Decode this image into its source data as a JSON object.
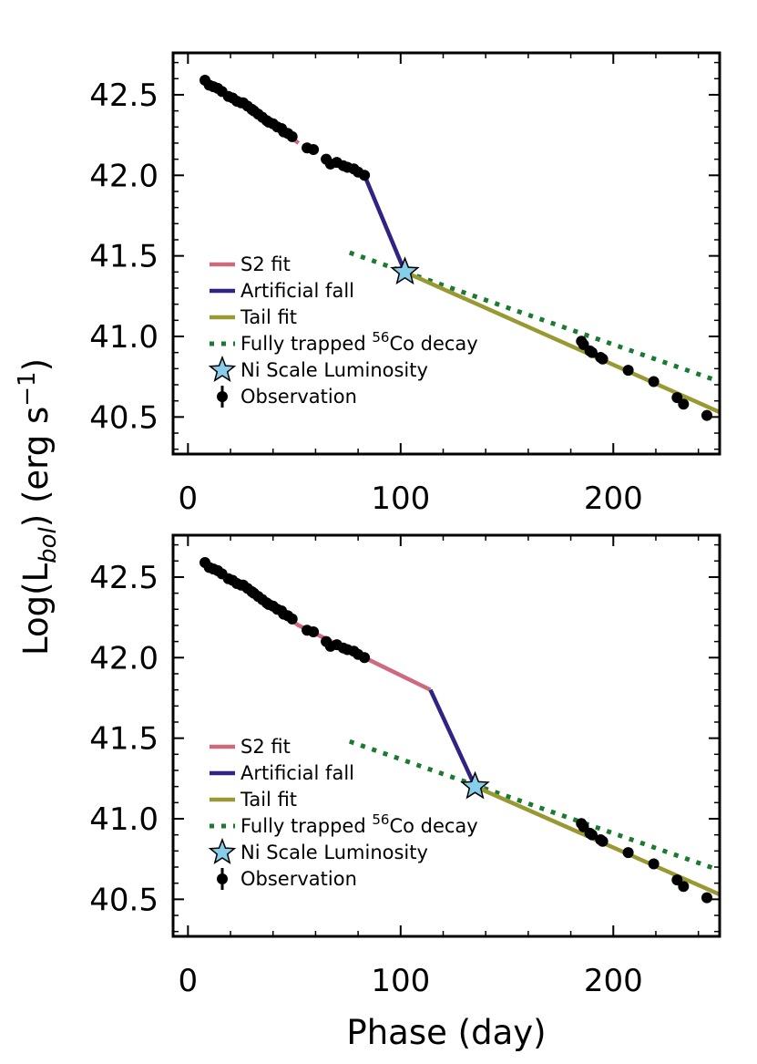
{
  "figure": {
    "ylabel_main": "Log(L",
    "ylabel_sub": "bol",
    "ylabel_tail": ") (erg s",
    "ylabel_exp": "−1",
    "ylabel_close": ")",
    "xlabel": "Phase (day)"
  },
  "colors": {
    "s2_fit": "#cd6a7e",
    "artificial_fall": "#2f2384",
    "tail_fit": "#999933",
    "co_decay": "#1a7a32",
    "star_fill": "#87ceeb",
    "observation": "#000000"
  },
  "chart_data": [
    {
      "type": "line",
      "panel": "top",
      "xlim": [
        -7,
        250
      ],
      "ylim": [
        40.27,
        42.76
      ],
      "xticks": [
        "0",
        "100",
        "200"
      ],
      "xtick_values": [
        0,
        100,
        200
      ],
      "yticks": [
        "40.5",
        "41.0",
        "41.5",
        "42.0",
        "42.5"
      ],
      "ytick_values": [
        40.5,
        41.0,
        41.5,
        42.0,
        42.5
      ],
      "series": {
        "s2_fit": {
          "x": [
            8,
            49,
            52
          ],
          "y": [
            42.59,
            42.23,
            42.2
          ]
        },
        "artificial_fall": {
          "x": [
            83,
            102
          ],
          "y": [
            42.0,
            41.4
          ]
        },
        "tail_fit": {
          "x": [
            102,
            250
          ],
          "y": [
            41.4,
            40.53
          ]
        },
        "co_decay": {
          "x": [
            76,
            250
          ],
          "y": [
            41.52,
            40.72
          ]
        },
        "ni_scale_luminosity": {
          "x": 102,
          "y": 41.4
        }
      },
      "observations": {
        "x": [
          8,
          10,
          12,
          14,
          16,
          19,
          21,
          23,
          25,
          26,
          28,
          30,
          31,
          33,
          35,
          37,
          38,
          40,
          42,
          44,
          45,
          47,
          49,
          56,
          59,
          65,
          67,
          70,
          73,
          75,
          78,
          80,
          83,
          185,
          186,
          189,
          190,
          194,
          195,
          207,
          219,
          230,
          233,
          244
        ],
        "y": [
          42.59,
          42.56,
          42.55,
          42.54,
          42.52,
          42.49,
          42.48,
          42.46,
          42.45,
          42.45,
          42.43,
          42.41,
          42.4,
          42.38,
          42.36,
          42.34,
          42.33,
          42.32,
          42.3,
          42.29,
          42.27,
          42.26,
          42.24,
          42.17,
          42.16,
          42.1,
          42.07,
          42.08,
          42.06,
          42.05,
          42.04,
          42.02,
          42.0,
          40.97,
          40.95,
          40.91,
          40.9,
          40.87,
          40.86,
          40.79,
          40.72,
          40.62,
          40.58,
          40.51
        ]
      },
      "legend": {
        "position": "lower-left",
        "entries": [
          "S2 fit",
          "Artificial fall",
          "Tail fit",
          "Fully trapped ",
          "56",
          "Co decay",
          "Ni Scale Luminosity",
          "Observation"
        ]
      }
    },
    {
      "type": "line",
      "panel": "bottom",
      "xlim": [
        -7,
        250
      ],
      "ylim": [
        40.27,
        42.76
      ],
      "xticks": [
        "0",
        "100",
        "200"
      ],
      "xtick_values": [
        0,
        100,
        200
      ],
      "yticks": [
        "40.5",
        "41.0",
        "41.5",
        "42.0",
        "42.5"
      ],
      "ytick_values": [
        40.5,
        41.0,
        41.5,
        42.0,
        42.5
      ],
      "series": {
        "s2_fit": {
          "x": [
            8,
            49,
            52,
            83,
            114
          ],
          "y": [
            42.59,
            42.23,
            42.2,
            42.0,
            41.8
          ]
        },
        "artificial_fall": {
          "x": [
            114,
            135
          ],
          "y": [
            41.8,
            41.2
          ]
        },
        "tail_fit": {
          "x": [
            135,
            250
          ],
          "y": [
            41.2,
            40.53
          ]
        },
        "co_decay": {
          "x": [
            76,
            250
          ],
          "y": [
            41.48,
            40.68
          ]
        },
        "ni_scale_luminosity": {
          "x": 135,
          "y": 41.2
        }
      },
      "observations": {
        "x": [
          8,
          10,
          12,
          14,
          16,
          19,
          21,
          23,
          25,
          26,
          28,
          30,
          31,
          33,
          35,
          37,
          38,
          40,
          42,
          44,
          45,
          47,
          49,
          56,
          59,
          65,
          67,
          70,
          73,
          75,
          78,
          80,
          83,
          185,
          186,
          189,
          190,
          194,
          195,
          207,
          219,
          230,
          233,
          244
        ],
        "y": [
          42.59,
          42.56,
          42.55,
          42.54,
          42.52,
          42.49,
          42.48,
          42.46,
          42.45,
          42.45,
          42.43,
          42.41,
          42.4,
          42.38,
          42.36,
          42.34,
          42.33,
          42.32,
          42.3,
          42.29,
          42.27,
          42.26,
          42.24,
          42.17,
          42.16,
          42.1,
          42.07,
          42.08,
          42.06,
          42.05,
          42.04,
          42.02,
          42.0,
          40.97,
          40.95,
          40.91,
          40.9,
          40.87,
          40.86,
          40.79,
          40.72,
          40.62,
          40.58,
          40.51
        ]
      },
      "legend": {
        "position": "lower-left",
        "entries": [
          "S2 fit",
          "Artificial fall",
          "Tail fit",
          "Fully trapped ",
          "56",
          "Co decay",
          "Ni Scale Luminosity",
          "Observation"
        ]
      }
    }
  ]
}
